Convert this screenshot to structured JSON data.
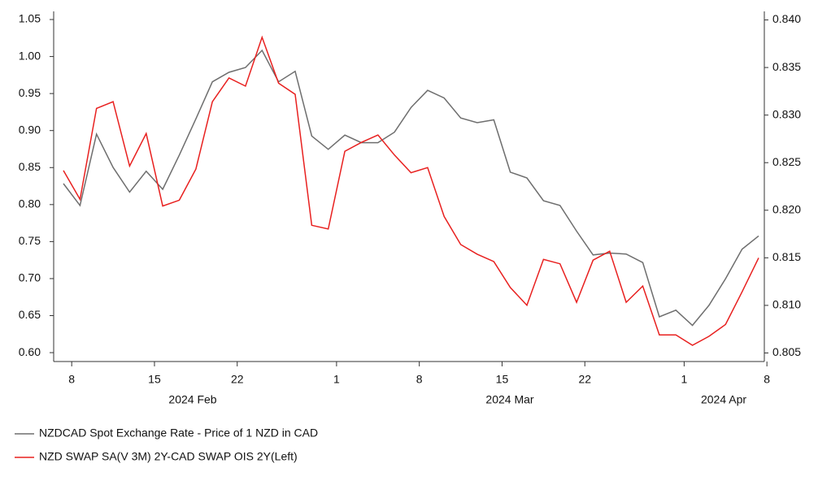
{
  "chart_data": {
    "type": "line",
    "x": [
      "2024-02-07",
      "2024-02-08",
      "2024-02-09",
      "2024-02-12",
      "2024-02-13",
      "2024-02-14",
      "2024-02-15",
      "2024-02-16",
      "2024-02-19",
      "2024-02-20",
      "2024-02-21",
      "2024-02-22",
      "2024-02-23",
      "2024-02-26",
      "2024-02-27",
      "2024-02-28",
      "2024-02-29",
      "2024-03-01",
      "2024-03-04",
      "2024-03-05",
      "2024-03-06",
      "2024-03-07",
      "2024-03-08",
      "2024-03-11",
      "2024-03-12",
      "2024-03-13",
      "2024-03-14",
      "2024-03-15",
      "2024-03-18",
      "2024-03-19",
      "2024-03-20",
      "2024-03-21",
      "2024-03-22",
      "2024-03-25",
      "2024-03-26",
      "2024-03-27",
      "2024-03-28",
      "2024-03-29",
      "2024-04-01",
      "2024-04-02",
      "2024-04-03",
      "2024-04-04",
      "2024-04-05"
    ],
    "xticks": [
      {
        "value": "2024-02-08",
        "label": "8"
      },
      {
        "value": "2024-02-15",
        "label": "15"
      },
      {
        "value": "2024-02-22",
        "label": "22"
      },
      {
        "value": "2024-03-01",
        "label": "1"
      },
      {
        "value": "2024-03-08",
        "label": "8"
      },
      {
        "value": "2024-03-15",
        "label": "15"
      },
      {
        "value": "2024-03-22",
        "label": "22"
      },
      {
        "value": "2024-04-01",
        "label": "1"
      },
      {
        "value": "2024-04-08",
        "label": "8"
      }
    ],
    "x_group_labels": [
      "2024 Feb",
      "2024 Mar",
      "2024 Apr"
    ],
    "series": [
      {
        "name": "NZDCAD Spot Exchange Rate - Price of 1 NZD in CAD",
        "color": "#6e6e6e",
        "axis": "y2",
        "values": [
          0.8228,
          0.8205,
          0.828,
          0.8245,
          0.8219,
          0.8241,
          0.8222,
          0.8258,
          0.8296,
          0.8335,
          0.8345,
          0.835,
          0.8368,
          0.8335,
          0.8346,
          0.8278,
          0.8264,
          0.8279,
          0.8271,
          0.8271,
          0.8282,
          0.8308,
          0.8326,
          0.8318,
          0.8297,
          0.8292,
          0.8295,
          0.824,
          0.8234,
          0.821,
          0.8205,
          0.8178,
          0.8153,
          0.8155,
          0.8154,
          0.8145,
          0.8088,
          0.8095,
          0.8079,
          0.81,
          0.8128,
          0.8159,
          0.8173
        ]
      },
      {
        "name": "NZD SWAP SA(V 3M) 2Y-CAD SWAP OIS 2Y(Left)",
        "color": "#e8201f",
        "axis": "y",
        "values": [
          0.846,
          0.807,
          0.93,
          0.939,
          0.852,
          0.896,
          0.798,
          0.806,
          0.848,
          0.939,
          0.971,
          0.96,
          1.026,
          0.964,
          0.949,
          0.772,
          0.767,
          0.872,
          0.884,
          0.894,
          0.867,
          0.843,
          0.85,
          0.784,
          0.746,
          0.733,
          0.723,
          0.688,
          0.664,
          0.726,
          0.72,
          0.668,
          0.725,
          0.737,
          0.668,
          0.69,
          0.624,
          0.624,
          0.61,
          0.622,
          0.638,
          0.682,
          0.728
        ]
      }
    ],
    "ylim": [
      0.588,
      1.061
    ],
    "yticks": [
      {
        "value": 0.6,
        "label": "0.60"
      },
      0.65,
      {
        "value": 0.7,
        "label": "0.70"
      },
      0.75,
      {
        "value": 0.8,
        "label": "0.80"
      },
      0.85,
      {
        "value": 0.9,
        "label": "0.90"
      },
      0.95,
      {
        "value": 1.0,
        "label": "1.00"
      },
      1.05
    ],
    "y2lim": [
      0.8041,
      0.8409
    ],
    "y2ticks": [
      {
        "value": 0.805,
        "label": "0.805"
      },
      {
        "value": 0.81,
        "label": "0.810"
      },
      0.815,
      {
        "value": 0.82,
        "label": "0.820"
      },
      0.825,
      {
        "value": 0.83,
        "label": "0.830"
      },
      0.835,
      {
        "value": 0.84,
        "label": "0.840"
      }
    ]
  }
}
